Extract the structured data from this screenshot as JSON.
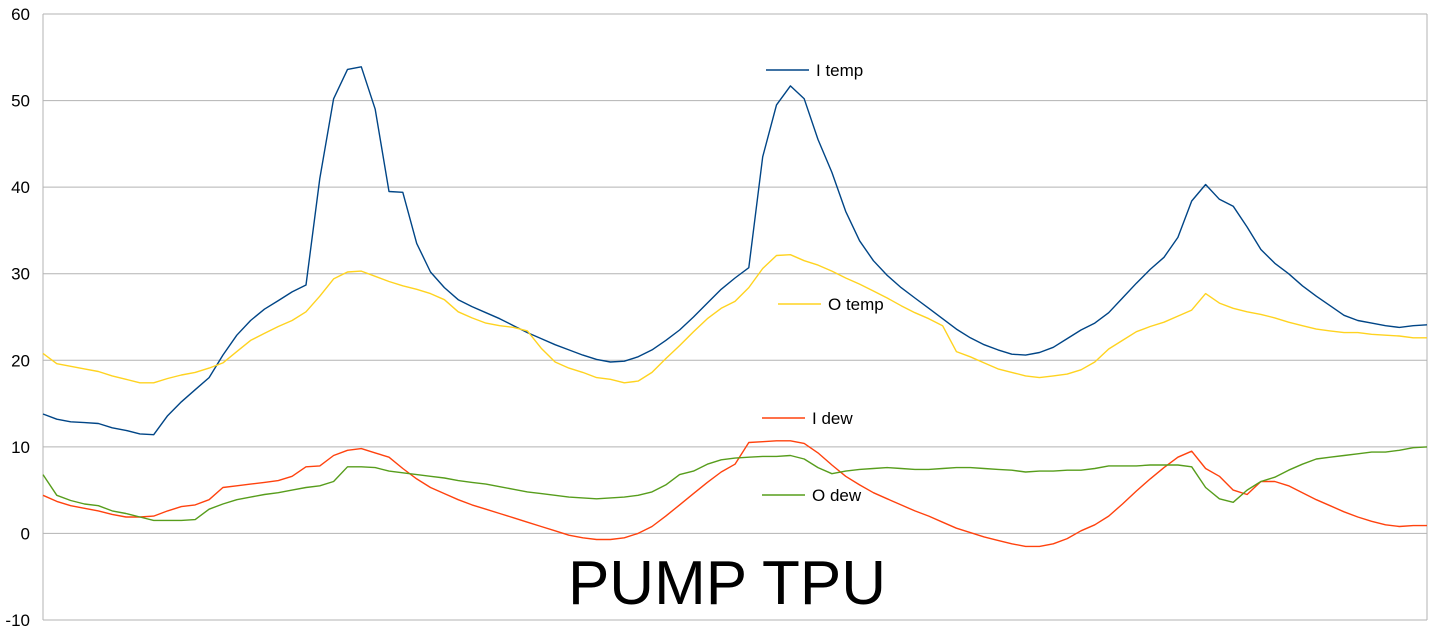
{
  "chart_data": {
    "type": "line",
    "title": "PUMP TPU",
    "xlabel": "",
    "ylabel": "",
    "ylim": [
      -10,
      60
    ],
    "yticks": [
      -10,
      0,
      10,
      20,
      30,
      40,
      50,
      60
    ],
    "grid": "horizontal",
    "legend_placement": "inline labels next to each series",
    "x": [
      0,
      1,
      2,
      3,
      4,
      5,
      6,
      7,
      8,
      9,
      10,
      11,
      12,
      13,
      14,
      15,
      16,
      17,
      18,
      19,
      20,
      21,
      22,
      23,
      24,
      25,
      26,
      27,
      28,
      29,
      30,
      31,
      32,
      33,
      34,
      35,
      36,
      37,
      38,
      39,
      40,
      41,
      42,
      43,
      44,
      45,
      46,
      47,
      48,
      49,
      50,
      51,
      52,
      53,
      54,
      55,
      56,
      57,
      58,
      59,
      60,
      61,
      62,
      63,
      64,
      65,
      66,
      67,
      68,
      69,
      70,
      71,
      72,
      73,
      74,
      75,
      76,
      77,
      78,
      79,
      80,
      81,
      82,
      83,
      84,
      85,
      86,
      87,
      88,
      89,
      90,
      91,
      92,
      93,
      94,
      95,
      96,
      97,
      98,
      99,
      100
    ],
    "series": [
      {
        "name": "I temp",
        "color": "#004586",
        "values": [
          13.8,
          13.2,
          12.9,
          12.8,
          12.7,
          12.2,
          11.9,
          11.5,
          11.4,
          13.6,
          15.2,
          16.6,
          18.0,
          20.6,
          22.9,
          24.6,
          25.9,
          26.9,
          27.9,
          28.7,
          41.0,
          50.2,
          53.6,
          53.9,
          49.0,
          39.5,
          39.4,
          33.5,
          30.2,
          28.4,
          27.0,
          26.2,
          25.5,
          24.8,
          24.0,
          23.2,
          22.5,
          21.8,
          21.2,
          20.6,
          20.1,
          19.8,
          19.9,
          20.4,
          21.2,
          22.3,
          23.5,
          25.0,
          26.6,
          28.2,
          29.5,
          30.7,
          43.5,
          49.5,
          51.7,
          50.2,
          45.5,
          41.7,
          37.2,
          33.8,
          31.5,
          29.8,
          28.4,
          27.2,
          26.0,
          24.8,
          23.6,
          22.6,
          21.8,
          21.2,
          20.7,
          20.6,
          20.9,
          21.5,
          22.5,
          23.5,
          24.3,
          25.5,
          27.2,
          28.9,
          30.5,
          31.9,
          34.2,
          38.4,
          40.3,
          38.6,
          37.8,
          35.4,
          32.8,
          31.2,
          30.0,
          28.6,
          27.4,
          26.3,
          25.2,
          24.6,
          24.3,
          24.0,
          23.8,
          24.0,
          24.1
        ]
      },
      {
        "name": "O temp",
        "color": "#ffd320",
        "values": [
          20.8,
          19.6,
          19.3,
          19.0,
          18.7,
          18.2,
          17.8,
          17.4,
          17.4,
          17.9,
          18.3,
          18.6,
          19.1,
          19.7,
          21.0,
          22.3,
          23.1,
          23.9,
          24.6,
          25.6,
          27.4,
          29.4,
          30.2,
          30.3,
          29.7,
          29.1,
          28.6,
          28.2,
          27.7,
          27.0,
          25.6,
          24.9,
          24.3,
          24.0,
          23.8,
          23.4,
          21.4,
          19.8,
          19.1,
          18.6,
          18.0,
          17.8,
          17.4,
          17.6,
          18.6,
          20.2,
          21.7,
          23.3,
          24.8,
          26.0,
          26.8,
          28.4,
          30.6,
          32.1,
          32.2,
          31.5,
          31.0,
          30.3,
          29.5,
          28.8,
          28.0,
          27.2,
          26.3,
          25.5,
          24.8,
          24.0,
          21.0,
          20.4,
          19.7,
          19.0,
          18.6,
          18.2,
          18.0,
          18.2,
          18.4,
          18.9,
          19.8,
          21.3,
          22.3,
          23.3,
          23.9,
          24.4,
          25.1,
          25.8,
          27.7,
          26.6,
          26.0,
          25.6,
          25.3,
          24.9,
          24.4,
          24.0,
          23.6,
          23.4,
          23.2,
          23.2,
          23.0,
          22.9,
          22.8,
          22.6,
          22.6
        ]
      },
      {
        "name": "I dew",
        "color": "#ff420e",
        "values": [
          4.4,
          3.7,
          3.2,
          2.9,
          2.6,
          2.2,
          1.9,
          1.9,
          2.0,
          2.6,
          3.1,
          3.3,
          3.9,
          5.3,
          5.5,
          5.7,
          5.9,
          6.1,
          6.6,
          7.7,
          7.8,
          9.0,
          9.6,
          9.8,
          9.3,
          8.8,
          7.5,
          6.3,
          5.3,
          4.6,
          3.9,
          3.3,
          2.8,
          2.3,
          1.8,
          1.3,
          0.8,
          0.3,
          -0.2,
          -0.5,
          -0.7,
          -0.7,
          -0.5,
          0.0,
          0.8,
          2.0,
          3.3,
          4.6,
          5.9,
          7.1,
          8.0,
          10.5,
          10.6,
          10.7,
          10.7,
          10.4,
          9.3,
          7.9,
          6.6,
          5.6,
          4.7,
          4.0,
          3.3,
          2.6,
          2.0,
          1.3,
          0.6,
          0.1,
          -0.4,
          -0.8,
          -1.2,
          -1.5,
          -1.5,
          -1.2,
          -0.6,
          0.3,
          1.0,
          2.0,
          3.4,
          4.9,
          6.3,
          7.6,
          8.8,
          9.5,
          7.5,
          6.6,
          5.0,
          4.5,
          6.0,
          6.0,
          5.5,
          4.7,
          3.9,
          3.2,
          2.5,
          1.9,
          1.4,
          1.0,
          0.8,
          0.9,
          0.9
        ]
      },
      {
        "name": "O dew",
        "color": "#579d1c",
        "values": [
          6.8,
          4.4,
          3.8,
          3.4,
          3.2,
          2.6,
          2.3,
          1.9,
          1.5,
          1.5,
          1.5,
          1.6,
          2.8,
          3.4,
          3.9,
          4.2,
          4.5,
          4.7,
          5.0,
          5.3,
          5.5,
          6.0,
          7.7,
          7.7,
          7.6,
          7.2,
          7.0,
          6.8,
          6.6,
          6.4,
          6.1,
          5.9,
          5.7,
          5.4,
          5.1,
          4.8,
          4.6,
          4.4,
          4.2,
          4.1,
          4.0,
          4.1,
          4.2,
          4.4,
          4.8,
          5.6,
          6.8,
          7.2,
          8.0,
          8.5,
          8.7,
          8.8,
          8.9,
          8.9,
          9.0,
          8.6,
          7.6,
          6.9,
          7.2,
          7.4,
          7.5,
          7.6,
          7.5,
          7.4,
          7.4,
          7.5,
          7.6,
          7.6,
          7.5,
          7.4,
          7.3,
          7.1,
          7.2,
          7.2,
          7.3,
          7.3,
          7.5,
          7.8,
          7.8,
          7.8,
          7.9,
          7.9,
          7.9,
          7.7,
          5.3,
          4.0,
          3.6,
          5.0,
          6.0,
          6.5,
          7.3,
          8.0,
          8.6,
          8.8,
          9.0,
          9.2,
          9.4,
          9.4,
          9.6,
          9.9,
          10.0
        ]
      }
    ],
    "legend": [
      {
        "label": "I temp",
        "series": "I temp"
      },
      {
        "label": "O temp",
        "series": "O temp"
      },
      {
        "label": "I dew",
        "series": "I dew"
      },
      {
        "label": "O dew",
        "series": "O dew"
      }
    ]
  }
}
